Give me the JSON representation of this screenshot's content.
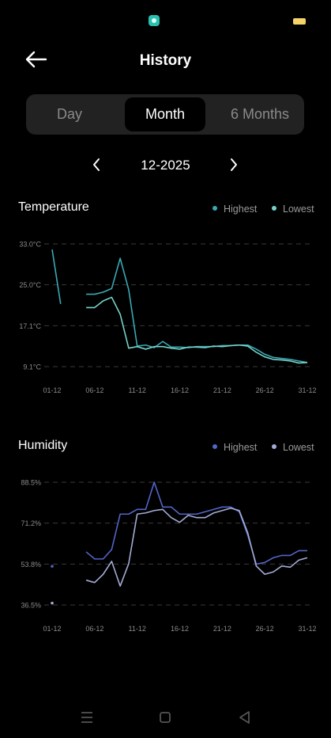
{
  "header": {
    "title": "History",
    "back_icon": "back-arrow-icon"
  },
  "tabs": [
    {
      "label": "Day",
      "active": false
    },
    {
      "label": "Month",
      "active": true
    },
    {
      "label": "6 Months",
      "active": false
    }
  ],
  "period": {
    "label": "12-2025",
    "prev_icon": "chevron-left-icon",
    "next_icon": "chevron-right-icon"
  },
  "colors": {
    "temp_highest": "#3aa9b4",
    "temp_lowest": "#75d3c9",
    "hum_highest": "#5265c8",
    "hum_lowest": "#a4acd4"
  },
  "temperature": {
    "title": "Temperature",
    "legend": {
      "highest": "Highest",
      "lowest": "Lowest"
    }
  },
  "humidity": {
    "title": "Humidity",
    "legend": {
      "highest": "Highest",
      "lowest": "Lowest"
    }
  },
  "chart_data": [
    {
      "type": "line",
      "title": "Temperature",
      "x_tick_labels": [
        "01-12",
        "06-12",
        "11-12",
        "16-12",
        "21-12",
        "26-12",
        "31-12"
      ],
      "y_tick_labels": [
        "33.0°C",
        "25.0°C",
        "17.1°C",
        "9.1°C"
      ],
      "ylim": [
        9.1,
        33.0
      ],
      "x": [
        1,
        2,
        3,
        4,
        5,
        6,
        7,
        8,
        9,
        10,
        11,
        12,
        13,
        14,
        15,
        16,
        17,
        18,
        19,
        20,
        21,
        22,
        23,
        24,
        25,
        26,
        27,
        28,
        29,
        30,
        31
      ],
      "series": [
        {
          "name": "Highest",
          "values": [
            31.9,
            21.3,
            null,
            null,
            23.2,
            23.2,
            23.6,
            24.3,
            30.2,
            24.1,
            13.1,
            13.3,
            12.8,
            14.0,
            12.9,
            12.9,
            12.8,
            13.0,
            13.0,
            13.0,
            13.2,
            13.2,
            13.3,
            13.3,
            12.5,
            11.5,
            10.9,
            10.7,
            10.5,
            10.2,
            9.9
          ]
        },
        {
          "name": "Lowest",
          "values": [
            null,
            null,
            null,
            null,
            20.6,
            20.6,
            21.9,
            22.6,
            19.3,
            12.7,
            13.0,
            12.5,
            13.0,
            13.0,
            12.7,
            12.5,
            12.9,
            12.9,
            12.8,
            13.1,
            13.0,
            13.2,
            13.3,
            13.1,
            11.9,
            11.0,
            10.5,
            10.4,
            10.2,
            9.8,
            9.9
          ]
        }
      ],
      "grid": "dashed-horizontal"
    },
    {
      "type": "line",
      "title": "Humidity",
      "x_tick_labels": [
        "01-12",
        "06-12",
        "11-12",
        "16-12",
        "21-12",
        "26-12",
        "31-12"
      ],
      "y_tick_labels": [
        "88.5%",
        "71.2%",
        "53.8%",
        "36.5%"
      ],
      "ylim": [
        36.5,
        88.5
      ],
      "x": [
        1,
        2,
        3,
        4,
        5,
        6,
        7,
        8,
        9,
        10,
        11,
        12,
        13,
        14,
        15,
        16,
        17,
        18,
        19,
        20,
        21,
        22,
        23,
        24,
        25,
        26,
        27,
        28,
        29,
        30,
        31
      ],
      "series": [
        {
          "name": "Highest",
          "values": [
            52.9,
            null,
            null,
            null,
            59.0,
            56.0,
            56.0,
            60.0,
            75.0,
            75.0,
            77.0,
            77.0,
            88.5,
            78.0,
            78.0,
            75.0,
            75.0,
            75.0,
            76.0,
            77.0,
            78.0,
            78.0,
            76.0,
            66.0,
            53.8,
            54.5,
            56.5,
            57.5,
            57.5,
            59.5,
            59.5
          ]
        },
        {
          "name": "Lowest",
          "values": [
            37.3,
            null,
            null,
            null,
            47.0,
            46.0,
            49.5,
            55.0,
            44.5,
            54.0,
            75.0,
            75.5,
            76.5,
            77.0,
            73.5,
            71.5,
            74.5,
            73.5,
            73.5,
            75.5,
            76.5,
            77.5,
            76.5,
            67.0,
            53.0,
            49.5,
            50.5,
            53.0,
            52.5,
            55.5,
            56.5
          ]
        }
      ],
      "grid": "dashed-horizontal"
    }
  ],
  "bottom_nav": {
    "menu_icon": "menu-icon",
    "home_icon": "home-square-icon",
    "back_icon": "back-triangle-icon"
  }
}
